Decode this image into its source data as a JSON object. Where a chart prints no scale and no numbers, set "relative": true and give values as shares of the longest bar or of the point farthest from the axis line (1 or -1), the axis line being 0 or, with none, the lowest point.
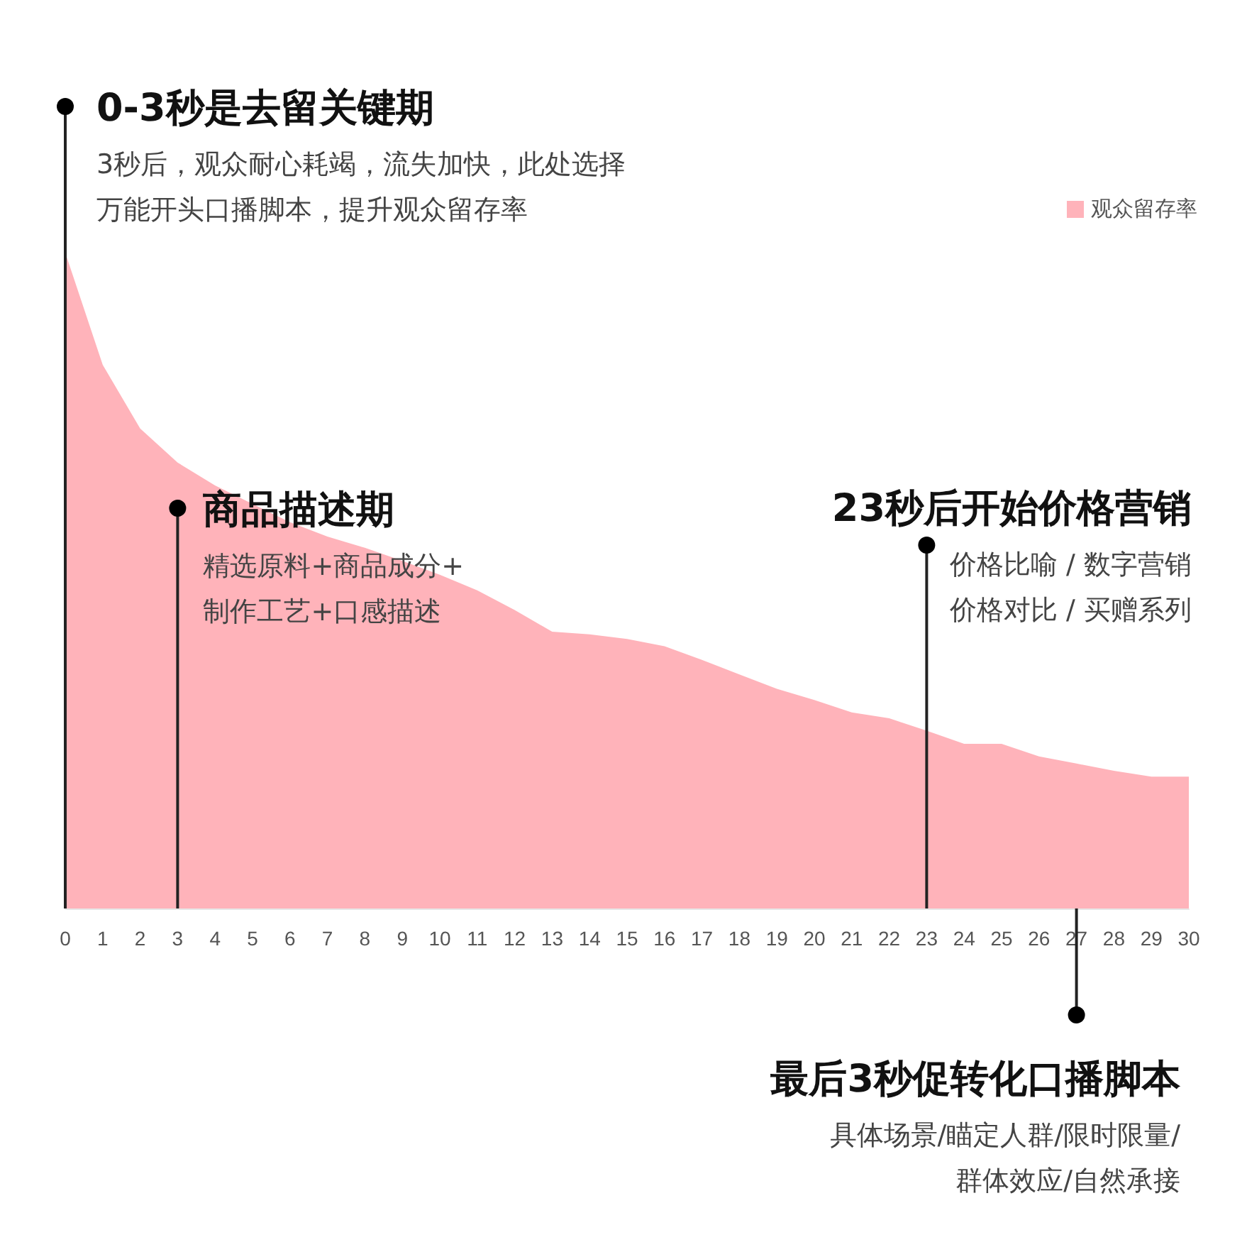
{
  "chart_data": {
    "type": "area",
    "relative": true,
    "x": [
      0,
      1,
      2,
      3,
      4,
      5,
      6,
      7,
      8,
      9,
      10,
      11,
      12,
      13,
      14,
      15,
      16,
      17,
      18,
      19,
      20,
      21,
      22,
      23,
      24,
      25,
      26,
      27,
      28,
      29,
      30
    ],
    "xlim": [
      0,
      30
    ],
    "xticks": [
      0,
      1,
      2,
      3,
      4,
      5,
      6,
      7,
      8,
      9,
      10,
      11,
      12,
      13,
      14,
      15,
      16,
      17,
      18,
      19,
      20,
      21,
      22,
      23,
      24,
      25,
      26,
      27,
      28,
      29,
      30
    ],
    "series": [
      {
        "name": "观众留存率",
        "color": "#ffb3ba",
        "values": [
          1,
          0.829,
          0.732,
          0.68,
          0.645,
          0.617,
          0.589,
          0.567,
          0.55,
          0.53,
          0.509,
          0.485,
          0.455,
          0.422,
          0.418,
          0.411,
          0.4,
          0.379,
          0.357,
          0.335,
          0.318,
          0.299,
          0.29,
          0.271,
          0.251,
          0.251,
          0.232,
          0.221,
          0.21,
          0.201,
          0.201
        ]
      }
    ],
    "legend": "top right",
    "grid": false,
    "ref_lines": [
      {
        "axis": "x",
        "value": 0,
        "label": "0-3秒是去留关键期"
      },
      {
        "axis": "x",
        "value": 3,
        "label": "商品描述期"
      },
      {
        "axis": "x",
        "value": 23,
        "label": "23秒后开始价格营销"
      },
      {
        "axis": "x",
        "value": 27,
        "label": "最后3秒促转化口播脚本"
      }
    ],
    "annotations": [
      "3秒后，观众耐心耗竭，流失加快，此处选择",
      "万能开头口播脚本，提升观众留存率",
      "精选原料+商品成分+",
      "制作工艺+口感描述",
      "价格比喻 / 数字营销",
      "价格对比 / 买赠系列",
      "具体场景/瞄定人群/限时限量/",
      "群体效应/自然承接"
    ]
  }
}
